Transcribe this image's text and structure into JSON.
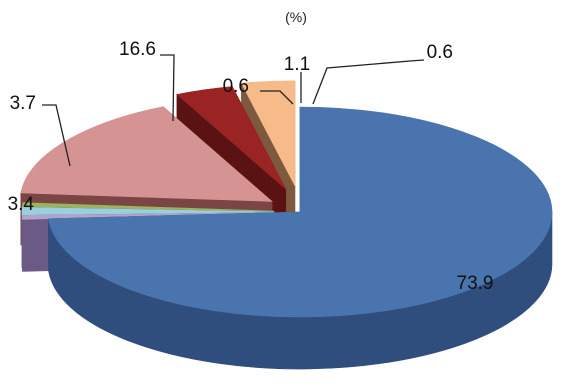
{
  "chart_data": {
    "type": "pie",
    "style": "3d-exploded",
    "unit_label": "(%)",
    "values": [
      73.9,
      0.6,
      1.1,
      0.6,
      16.6,
      3.7,
      3.4
    ],
    "labels": [
      "73.9",
      "0.6",
      "1.1",
      "0.6",
      "16.6",
      "3.7",
      "3.4"
    ],
    "colors": {
      "slice_top": [
        "#4a74ad",
        "#b2a2cc",
        "#9bcfe0",
        "#9cb35f",
        "#d59393",
        "#9a2424",
        "#f6bb89"
      ],
      "slice_side": [
        "#2f4d7d",
        "#6b5a86",
        "#5a8ea0",
        "#5f7030",
        "#7b4545",
        "#5a1212",
        "#7d5a3e"
      ]
    },
    "legend": "none",
    "grid": false
  }
}
